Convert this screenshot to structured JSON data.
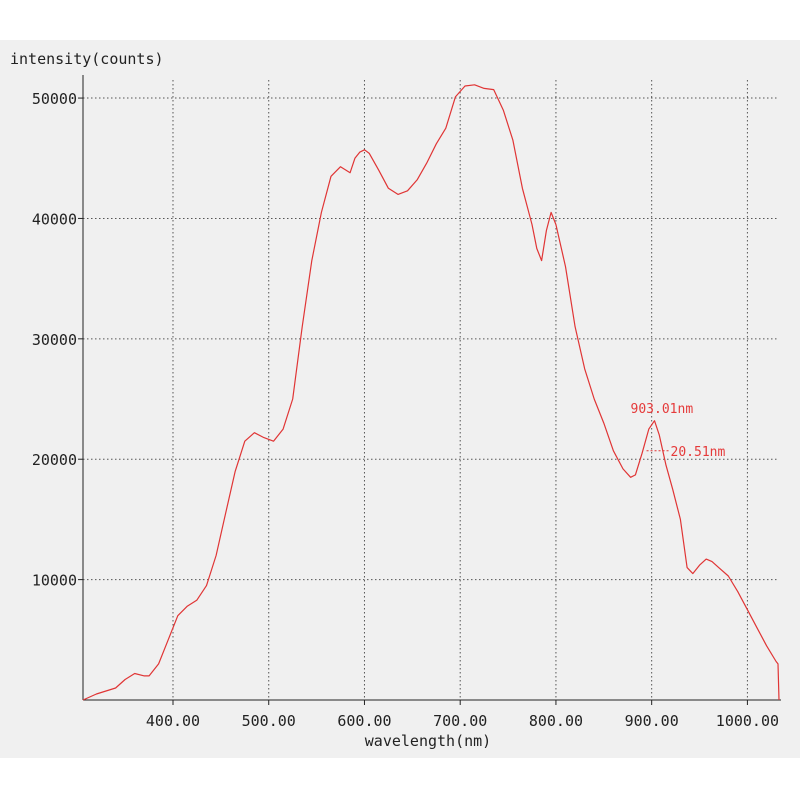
{
  "chart_data": {
    "type": "line",
    "ylabel": "intensity(counts)",
    "xlabel": "wavelength(nm)",
    "xlim": [
      306,
      1033
    ],
    "ylim": [
      0,
      51500
    ],
    "x_ticks": [
      400,
      500,
      600,
      700,
      800,
      900,
      1000
    ],
    "x_tick_labels": [
      "400.00",
      "500.00",
      "600.00",
      "700.00",
      "800.00",
      "900.00",
      "1000.00"
    ],
    "y_ticks": [
      10000,
      20000,
      30000,
      40000,
      50000
    ],
    "y_tick_labels": [
      "10000",
      "20000",
      "30000",
      "40000",
      "50000"
    ],
    "grid": true,
    "line_color": "#e03535",
    "grid_color": "#555555",
    "background": "#f0f0f0",
    "annotations": [
      {
        "text": "903.01nm",
        "x": 903,
        "y": 23000
      },
      {
        "text": "20.51nm",
        "x": 903,
        "y": 20700
      }
    ],
    "series": [
      {
        "x": [
          306,
          320,
          340,
          350,
          360,
          370,
          375,
          385,
          395,
          405,
          415,
          425,
          435,
          445,
          455,
          465,
          475,
          485,
          495,
          505,
          515,
          525,
          535,
          545,
          555,
          565,
          575,
          585,
          590,
          595,
          600,
          605,
          615,
          625,
          635,
          645,
          655,
          665,
          675,
          685,
          695,
          705,
          715,
          725,
          735,
          745,
          755,
          765,
          775,
          780,
          785,
          790,
          795,
          800,
          810,
          820,
          830,
          840,
          850,
          860,
          870,
          878,
          883,
          890,
          897,
          903,
          908,
          915,
          922,
          930,
          937,
          943,
          950,
          957,
          963,
          970,
          980,
          990,
          1000,
          1010,
          1020,
          1030,
          1032,
          1033
        ],
        "y": [
          0,
          500,
          1000,
          1700,
          2200,
          2000,
          2000,
          3000,
          5000,
          7000,
          7800,
          8300,
          9500,
          12000,
          15500,
          19000,
          21500,
          22200,
          21800,
          21500,
          22500,
          25000,
          31000,
          36500,
          40500,
          43500,
          44300,
          43800,
          45000,
          45500,
          45700,
          45400,
          44000,
          42500,
          42000,
          42300,
          43200,
          44600,
          46200,
          47500,
          50100,
          51000,
          51100,
          50800,
          50700,
          49000,
          46500,
          42500,
          39500,
          37500,
          36500,
          39000,
          40500,
          39500,
          36000,
          31000,
          27500,
          25000,
          23000,
          20700,
          19200,
          18500,
          18700,
          20500,
          22500,
          23200,
          22000,
          19500,
          17500,
          15000,
          11000,
          10500,
          11200,
          11700,
          11500,
          11000,
          10300,
          9000,
          7500,
          6000,
          4500,
          3200,
          3000,
          0
        ]
      }
    ]
  }
}
